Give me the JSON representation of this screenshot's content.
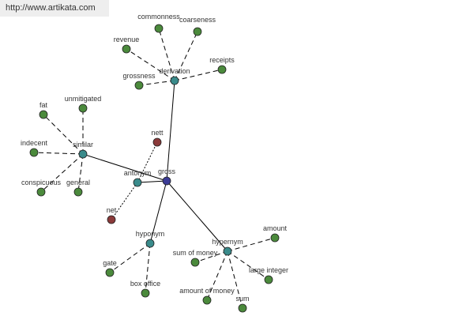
{
  "banner": {
    "url": "http://www.artikata.com"
  },
  "colors": {
    "root": "#3b3b96",
    "relation": "#3a8b8b",
    "word": "#4b8a3c",
    "antonym_word": "#8b3a3a",
    "edge": "#000000"
  },
  "graph": {
    "root": "gross",
    "nodes": [
      {
        "id": "gross",
        "label": "gross",
        "kind": "root"
      },
      {
        "id": "derivation",
        "label": "derivation",
        "kind": "relation"
      },
      {
        "id": "similar",
        "label": "similar",
        "kind": "relation"
      },
      {
        "id": "antonym",
        "label": "antonym",
        "kind": "relation"
      },
      {
        "id": "hyponym",
        "label": "hyponym",
        "kind": "relation"
      },
      {
        "id": "hypernym",
        "label": "hypernym",
        "kind": "relation"
      },
      {
        "id": "commonness",
        "label": "commonness",
        "kind": "word"
      },
      {
        "id": "coarseness",
        "label": "coarseness",
        "kind": "word"
      },
      {
        "id": "revenue",
        "label": "revenue",
        "kind": "word"
      },
      {
        "id": "grossness",
        "label": "grossness",
        "kind": "word"
      },
      {
        "id": "receipts",
        "label": "receipts",
        "kind": "word"
      },
      {
        "id": "fat",
        "label": "fat",
        "kind": "word"
      },
      {
        "id": "unmitigated",
        "label": "unmitigated",
        "kind": "word"
      },
      {
        "id": "indecent",
        "label": "indecent",
        "kind": "word"
      },
      {
        "id": "conspicuous",
        "label": "conspicuous",
        "kind": "word"
      },
      {
        "id": "general",
        "label": "general",
        "kind": "word"
      },
      {
        "id": "nett",
        "label": "nett",
        "kind": "antonym_word"
      },
      {
        "id": "net",
        "label": "net",
        "kind": "antonym_word"
      },
      {
        "id": "gate",
        "label": "gate",
        "kind": "word"
      },
      {
        "id": "box-office",
        "label": "box office",
        "kind": "word"
      },
      {
        "id": "amount",
        "label": "amount",
        "kind": "word"
      },
      {
        "id": "sum-of-money",
        "label": "sum of money",
        "kind": "word"
      },
      {
        "id": "large-integer",
        "label": "large integer",
        "kind": "word"
      },
      {
        "id": "amount-of-money",
        "label": "amount of money",
        "kind": "word"
      },
      {
        "id": "sum",
        "label": "sum",
        "kind": "word"
      }
    ],
    "edges": [
      {
        "from": "gross",
        "to": "derivation",
        "style": "solid"
      },
      {
        "from": "gross",
        "to": "similar",
        "style": "solid"
      },
      {
        "from": "gross",
        "to": "antonym",
        "style": "solid"
      },
      {
        "from": "gross",
        "to": "hyponym",
        "style": "solid"
      },
      {
        "from": "gross",
        "to": "hypernym",
        "style": "solid"
      },
      {
        "from": "derivation",
        "to": "commonness",
        "style": "dashed"
      },
      {
        "from": "derivation",
        "to": "coarseness",
        "style": "dashed"
      },
      {
        "from": "derivation",
        "to": "revenue",
        "style": "dashed"
      },
      {
        "from": "derivation",
        "to": "grossness",
        "style": "dashed"
      },
      {
        "from": "derivation",
        "to": "receipts",
        "style": "dashed"
      },
      {
        "from": "similar",
        "to": "fat",
        "style": "dashed"
      },
      {
        "from": "similar",
        "to": "unmitigated",
        "style": "dashed"
      },
      {
        "from": "similar",
        "to": "indecent",
        "style": "dashed"
      },
      {
        "from": "similar",
        "to": "conspicuous",
        "style": "dashed"
      },
      {
        "from": "similar",
        "to": "general",
        "style": "dashed"
      },
      {
        "from": "antonym",
        "to": "nett",
        "style": "dotted"
      },
      {
        "from": "antonym",
        "to": "net",
        "style": "dotted"
      },
      {
        "from": "hyponym",
        "to": "gate",
        "style": "dashed"
      },
      {
        "from": "hyponym",
        "to": "box-office",
        "style": "dashed"
      },
      {
        "from": "hypernym",
        "to": "amount",
        "style": "dashed"
      },
      {
        "from": "hypernym",
        "to": "sum-of-money",
        "style": "dashed"
      },
      {
        "from": "hypernym",
        "to": "large-integer",
        "style": "dashed"
      },
      {
        "from": "hypernym",
        "to": "amount-of-money",
        "style": "dashed"
      },
      {
        "from": "hypernym",
        "to": "sum",
        "style": "dashed"
      }
    ]
  }
}
